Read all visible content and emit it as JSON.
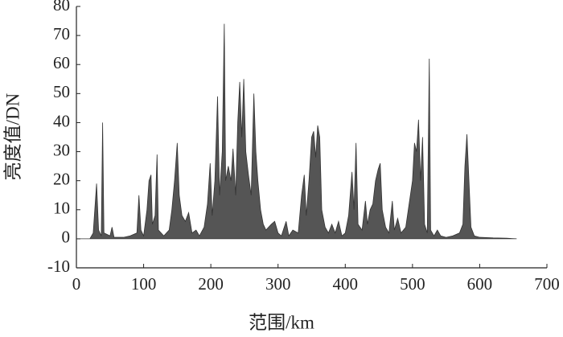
{
  "chart_data": {
    "type": "area",
    "x_label": "范围/km",
    "y_label": "亮度值/DN",
    "color": "#555555",
    "x": [
      0,
      20,
      25,
      30,
      33,
      37,
      39,
      41,
      50,
      53,
      56,
      70,
      80,
      90,
      93,
      96,
      100,
      105,
      108,
      111,
      113,
      117,
      120,
      122,
      130,
      138,
      142,
      146,
      150,
      153,
      157,
      162,
      167,
      172,
      178,
      183,
      190,
      195,
      199,
      202,
      206,
      210,
      213,
      217,
      220,
      222,
      226,
      230,
      233,
      237,
      240,
      243,
      246,
      249,
      252,
      256,
      260,
      264,
      267,
      270,
      274,
      278,
      282,
      290,
      295,
      300,
      305,
      312,
      316,
      322,
      330,
      335,
      339,
      342,
      346,
      350,
      353,
      356,
      359,
      362,
      365,
      370,
      375,
      380,
      385,
      390,
      395,
      400,
      405,
      410,
      413,
      416,
      419,
      425,
      430,
      433,
      437,
      441,
      445,
      449,
      452,
      455,
      460,
      465,
      470,
      473,
      478,
      483,
      490,
      495,
      500,
      503,
      506,
      509,
      512,
      515,
      518,
      522,
      525,
      527,
      532,
      537,
      542,
      550,
      560,
      570,
      575,
      578,
      581,
      584,
      587,
      592,
      600,
      620,
      640,
      655
    ],
    "values": [
      0,
      0,
      2,
      19,
      3,
      1,
      40,
      2,
      1,
      4,
      0.5,
      0.5,
      1,
      2,
      15,
      3,
      1,
      10,
      20,
      22,
      5,
      8,
      29,
      3,
      1,
      3,
      10,
      20,
      33,
      15,
      8,
      6,
      9,
      2,
      3,
      1,
      4,
      12,
      26,
      8,
      20,
      49,
      15,
      30,
      74,
      20,
      25,
      20,
      31,
      15,
      40,
      54,
      35,
      55,
      30,
      22,
      15,
      50,
      30,
      20,
      10,
      5,
      3,
      5,
      6,
      2,
      1,
      6,
      1,
      3,
      2,
      15,
      22,
      8,
      20,
      35,
      37,
      28,
      39,
      35,
      10,
      4,
      2,
      5,
      2,
      6,
      1,
      2,
      8,
      23,
      10,
      33,
      5,
      3,
      13,
      5,
      10,
      12,
      20,
      24,
      26,
      10,
      4,
      2,
      13,
      3,
      7,
      2,
      4,
      12,
      20,
      33,
      30,
      41,
      20,
      35,
      5,
      2,
      62,
      3,
      1,
      3,
      1,
      0.5,
      1,
      2,
      5,
      25,
      36,
      20,
      4,
      1,
      0.5,
      0.3,
      0.2,
      0
    ],
    "xlim": [
      0,
      700
    ],
    "xticks": [
      0,
      100,
      200,
      300,
      400,
      500,
      600,
      700
    ],
    "ylim": [
      -10,
      80
    ],
    "yticks": [
      -10,
      0,
      10,
      20,
      30,
      40,
      50,
      60,
      70,
      80
    ]
  }
}
